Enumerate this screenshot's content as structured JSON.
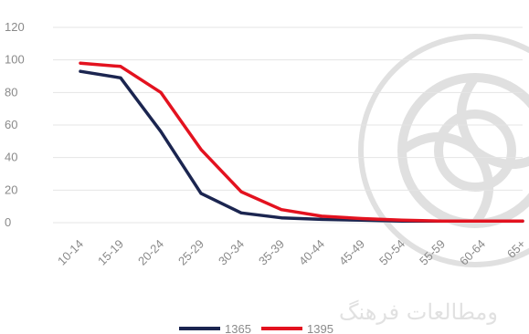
{
  "chart_data": {
    "type": "line",
    "categories": [
      "10-14",
      "15-19",
      "20-24",
      "25-29",
      "30-34",
      "35-39",
      "40-44",
      "45-49",
      "50-54",
      "55-59",
      "60-64",
      "65+"
    ],
    "yticks": [
      "0",
      "20",
      "40",
      "60",
      "80",
      "100",
      "120"
    ],
    "ylim": [
      0,
      120
    ],
    "grid": true,
    "legend_position": "bottom",
    "series": [
      {
        "name": "1365",
        "color": "#1b2550",
        "values": [
          93,
          89,
          56,
          18,
          6,
          3,
          2,
          1.5,
          1,
          1,
          1,
          1
        ]
      },
      {
        "name": "1395",
        "color": "#e3121f",
        "values": [
          98,
          96,
          80,
          45,
          19,
          8,
          4,
          2.5,
          1.5,
          1,
          1,
          1
        ]
      }
    ]
  },
  "watermark": {
    "text": "ومطالعات فرهنگ"
  }
}
